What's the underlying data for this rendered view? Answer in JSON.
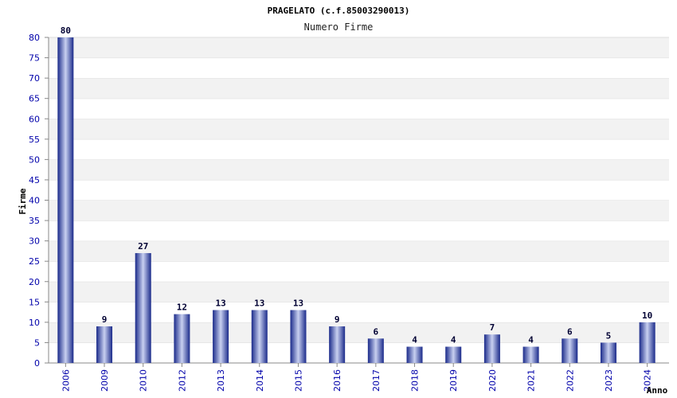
{
  "chart_data": {
    "type": "bar",
    "title": "PRAGELATO (c.f.85003290013)",
    "subtitle": "Numero Firme",
    "ylabel": "Firme",
    "xlabel": "Anno",
    "ylim": [
      0,
      80
    ],
    "ytick_step": 5,
    "grid": "horizontal alternating bands",
    "categories": [
      "2006",
      "2009",
      "2010",
      "2012",
      "2013",
      "2014",
      "2015",
      "2016",
      "2017",
      "2018",
      "2019",
      "2020",
      "2021",
      "2022",
      "2023",
      "2024"
    ],
    "values": [
      80,
      9,
      27,
      12,
      13,
      13,
      13,
      9,
      6,
      4,
      4,
      7,
      4,
      6,
      5,
      10
    ],
    "bar_color": "#1a2a8a",
    "bar_highlight": "#c8d0f0",
    "band_color": "#f2f2f2",
    "tick_color": "#0000aa"
  }
}
